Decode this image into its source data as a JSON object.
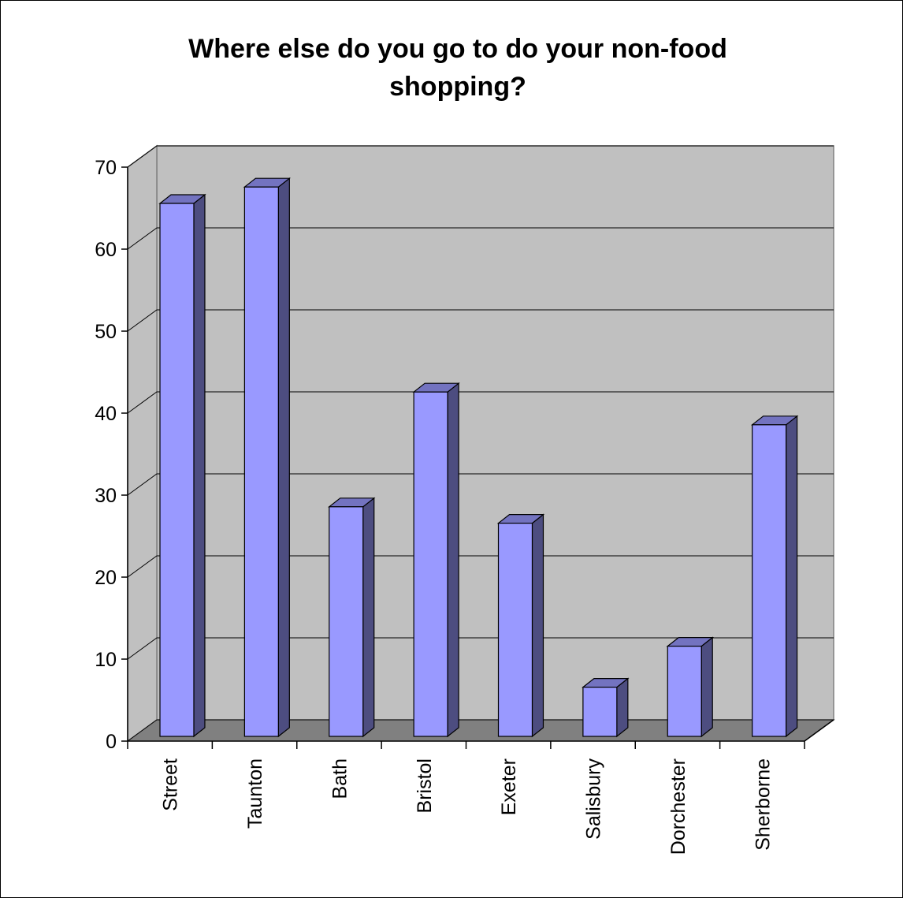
{
  "chart_data": {
    "type": "bar",
    "title_lines": [
      "Where else do you go to do your non-food",
      "shopping?"
    ],
    "categories": [
      "Street",
      "Taunton",
      "Bath",
      "Bristol",
      "Exeter",
      "Salisbury",
      "Dorchester",
      "Sherborne"
    ],
    "values": [
      65,
      67,
      28,
      42,
      26,
      6,
      11,
      38
    ],
    "y_ticks": [
      "0",
      "10",
      "20",
      "30",
      "40",
      "50",
      "60",
      "70"
    ],
    "ylim": [
      0,
      70
    ],
    "grid": true,
    "legend": "none",
    "style": "3d-column",
    "colors": {
      "bar_front": "#9999FF",
      "bar_side": "#4D4D80",
      "bar_top": "#7373C0",
      "back_wall": "#C0C0C0",
      "floor": "#808080",
      "side_wall": "#C0C0C0"
    }
  }
}
